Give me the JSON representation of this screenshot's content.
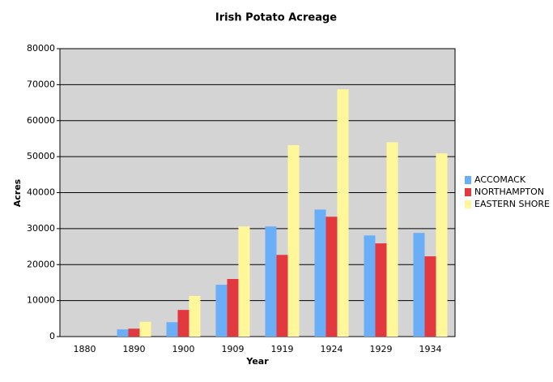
{
  "chart_data": {
    "type": "bar",
    "title": "Irish Potato Acreage",
    "x_label": "Year",
    "y_label": "Acres",
    "categories": [
      "1880",
      "1890",
      "1900",
      "1909",
      "1919",
      "1924",
      "1929",
      "1934"
    ],
    "series": [
      {
        "name": "ACCOMACK",
        "color": "#6aaef8",
        "values": [
          0,
          2000,
          4000,
          14400,
          30600,
          35300,
          28100,
          28800
        ]
      },
      {
        "name": "NORTHAMPTON",
        "color": "#e2383f",
        "values": [
          0,
          2200,
          7400,
          16000,
          22700,
          33300,
          25900,
          22300
        ]
      },
      {
        "name": "EASTERN SHORE",
        "color": "#fff79a",
        "values": [
          0,
          4100,
          11300,
          30600,
          53200,
          68700,
          54000,
          50900
        ]
      }
    ],
    "ylim": [
      0,
      80000
    ],
    "yticks": [
      0,
      10000,
      20000,
      30000,
      40000,
      50000,
      60000,
      70000,
      80000
    ],
    "grid": true,
    "legend": "right"
  }
}
